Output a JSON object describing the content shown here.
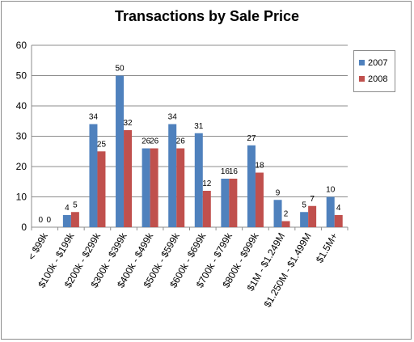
{
  "chart_data": {
    "type": "bar",
    "title": "Transactions by Sale Price",
    "categories": [
      "< $99k",
      "$100k - $199k",
      "$200k - $299k",
      "$300k - $399k",
      "$400k - $499k",
      "$500k - $599k",
      "$600k - $699k",
      "$700k - $799k",
      "$800k - $999k",
      "$1M - $1.249M",
      "$1.250M - $1.499M",
      "$1.5M+"
    ],
    "series": [
      {
        "name": "2007",
        "values": [
          0,
          4,
          34,
          50,
          26,
          34,
          31,
          16,
          27,
          9,
          5,
          10
        ],
        "color": "#4f81bd"
      },
      {
        "name": "2008",
        "values": [
          0,
          5,
          25,
          32,
          26,
          26,
          12,
          16,
          18,
          2,
          7,
          4
        ],
        "color": "#c0504d"
      }
    ],
    "ylim": [
      0,
      60
    ],
    "yticks": [
      0,
      10,
      20,
      30,
      40,
      50,
      60
    ],
    "grid": true,
    "legend_position": "right",
    "data_labels": true
  }
}
